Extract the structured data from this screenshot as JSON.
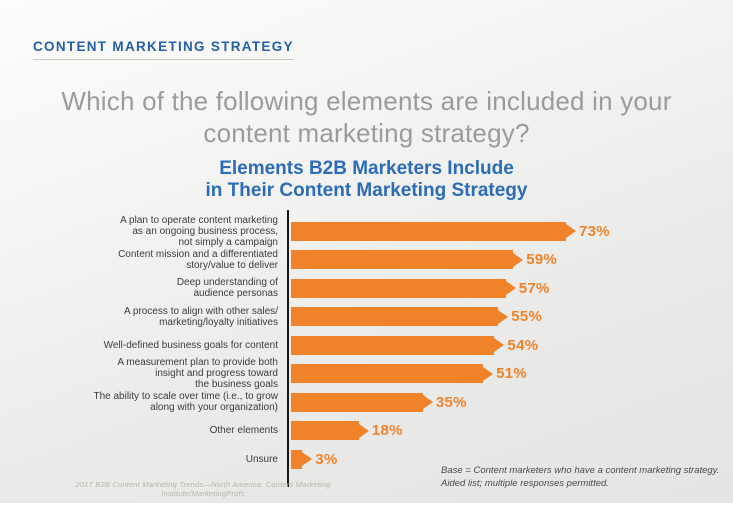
{
  "page": {
    "eyebrow": "CONTENT MARKETING STRATEGY",
    "question": "Which of the following elements are included in your content marketing strategy?"
  },
  "chart_data": {
    "type": "bar",
    "orientation": "horizontal",
    "title": "Elements B2B Marketers Include in Their Content Marketing Strategy",
    "title_lines": [
      "Elements B2B Marketers Include",
      "in Their Content Marketing Strategy"
    ],
    "xlabel": "",
    "ylabel": "",
    "xlim": [
      0,
      100
    ],
    "grid": false,
    "legend": false,
    "bar_color": "#f0832a",
    "axis_color": "#161616",
    "categories": [
      "A plan to operate content marketing as an ongoing business process, not simply a campaign",
      "Content mission and a differentiated story/value to deliver",
      "Deep understanding of audience personas",
      "A process to align with other sales/marketing/loyalty initiatives",
      "Well-defined business goals for content",
      "A measurement plan to provide both insight and progress toward the business goals",
      "The ability to scale over time (i.e., to grow along with your organization)",
      "Other elements",
      "Unsure"
    ],
    "category_lines": [
      [
        "A plan to operate content marketing",
        "as an ongoing business process,",
        "not simply a campaign"
      ],
      [
        "Content mission and a differentiated",
        "story/value to deliver"
      ],
      [
        "Deep understanding of",
        "audience personas"
      ],
      [
        "A process to align with other sales/",
        "marketing/loyalty initiatives"
      ],
      [
        "Well-defined business goals for content"
      ],
      [
        "A measurement plan to provide both",
        "insight and progress toward",
        "the business goals"
      ],
      [
        "The ability to scale over time (i.e., to grow",
        "along with your organization)"
      ],
      [
        "Other elements"
      ],
      [
        "Unsure"
      ]
    ],
    "values": [
      73,
      59,
      57,
      55,
      54,
      51,
      35,
      18,
      3
    ],
    "value_labels": [
      "73%",
      "59%",
      "57%",
      "55%",
      "54%",
      "51%",
      "35%",
      "18%",
      "3%"
    ]
  },
  "footnotes": {
    "source": "2017 B2B Content Marketing Trends—North America: Content Marketing Institute/MarketingProfs",
    "base_line1": "Base = Content marketers who have a content marketing strategy.",
    "base_line2": "Aided list; multiple responses permitted."
  },
  "colors": {
    "eyebrow_blue": "#2560a7",
    "title_blue": "#2c6cb6",
    "question_gray": "#9b9b9b",
    "bar_orange": "#f0832a",
    "label_gray": "#3c3c3c"
  }
}
